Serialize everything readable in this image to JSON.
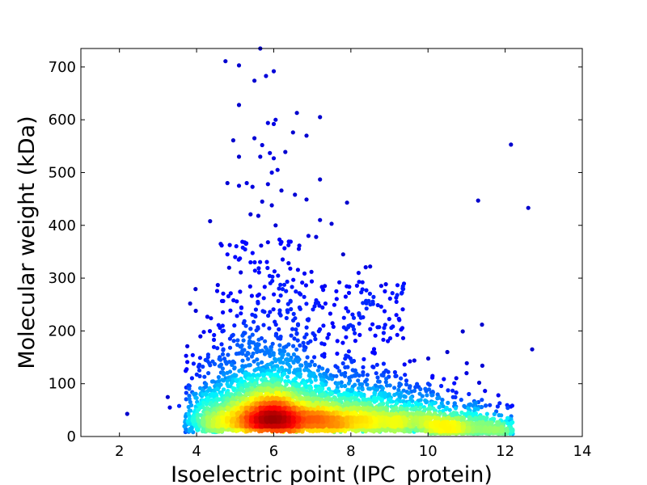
{
  "chart_data": {
    "type": "scatter",
    "title": "",
    "xlabel": "Isoelectric point (IPC_protein)",
    "ylabel": "Molecular weight (kDa)",
    "xlim": [
      1,
      14
    ],
    "ylim": [
      0,
      735
    ],
    "xticks": [
      2,
      4,
      6,
      8,
      10,
      12,
      14
    ],
    "yticks": [
      0,
      100,
      200,
      300,
      400,
      500,
      600,
      700
    ],
    "x_tick_labels": [
      "2",
      "4",
      "6",
      "8",
      "10",
      "12",
      "14"
    ],
    "y_tick_labels": [
      "0",
      "100",
      "200",
      "300",
      "400",
      "500",
      "600",
      "700"
    ],
    "grid": false,
    "legend": "none",
    "colormap": "jet (point density)",
    "colors": {
      "low_density": "#00008f",
      "mid_low": "#0080ff",
      "mid": "#40ffbf",
      "mid_high": "#ffff00",
      "high": "#ff4000",
      "peak": "#800000"
    },
    "density_peak": {
      "x": 5.7,
      "y": 45
    },
    "outlier_points": [
      {
        "x": 4.75,
        "y": 711
      },
      {
        "x": 5.1,
        "y": 703
      },
      {
        "x": 5.5,
        "y": 674
      },
      {
        "x": 5.65,
        "y": 735
      },
      {
        "x": 5.8,
        "y": 683
      },
      {
        "x": 6.0,
        "y": 692
      },
      {
        "x": 5.1,
        "y": 628
      },
      {
        "x": 6.6,
        "y": 613
      },
      {
        "x": 7.2,
        "y": 605
      },
      {
        "x": 5.85,
        "y": 594
      },
      {
        "x": 6.05,
        "y": 600
      },
      {
        "x": 6.0,
        "y": 592
      },
      {
        "x": 4.95,
        "y": 561
      },
      {
        "x": 5.5,
        "y": 565
      },
      {
        "x": 6.5,
        "y": 576
      },
      {
        "x": 6.85,
        "y": 570
      },
      {
        "x": 5.7,
        "y": 552
      },
      {
        "x": 5.65,
        "y": 530
      },
      {
        "x": 5.9,
        "y": 537
      },
      {
        "x": 6.0,
        "y": 527
      },
      {
        "x": 6.3,
        "y": 539
      },
      {
        "x": 5.1,
        "y": 530
      },
      {
        "x": 5.95,
        "y": 500
      },
      {
        "x": 6.1,
        "y": 505
      },
      {
        "x": 4.8,
        "y": 480
      },
      {
        "x": 5.1,
        "y": 475
      },
      {
        "x": 5.3,
        "y": 480
      },
      {
        "x": 5.45,
        "y": 473
      },
      {
        "x": 5.85,
        "y": 478
      },
      {
        "x": 7.2,
        "y": 487
      },
      {
        "x": 6.2,
        "y": 466
      },
      {
        "x": 6.55,
        "y": 458
      },
      {
        "x": 6.85,
        "y": 449
      },
      {
        "x": 7.9,
        "y": 443
      },
      {
        "x": 5.7,
        "y": 445
      },
      {
        "x": 5.95,
        "y": 438
      },
      {
        "x": 4.35,
        "y": 408
      },
      {
        "x": 5.4,
        "y": 421
      },
      {
        "x": 5.6,
        "y": 418
      },
      {
        "x": 6.05,
        "y": 400
      },
      {
        "x": 7.2,
        "y": 410
      },
      {
        "x": 7.5,
        "y": 403
      },
      {
        "x": 6.9,
        "y": 380
      },
      {
        "x": 7.1,
        "y": 378
      },
      {
        "x": 6.15,
        "y": 373
      },
      {
        "x": 5.85,
        "y": 368
      },
      {
        "x": 4.65,
        "y": 362
      },
      {
        "x": 5.0,
        "y": 340
      },
      {
        "x": 4.8,
        "y": 345
      },
      {
        "x": 7.8,
        "y": 345
      },
      {
        "x": 5.4,
        "y": 330
      },
      {
        "x": 8.5,
        "y": 322
      },
      {
        "x": 8.2,
        "y": 310
      },
      {
        "x": 4.55,
        "y": 287
      },
      {
        "x": 9.2,
        "y": 268
      },
      {
        "x": 11.3,
        "y": 447
      },
      {
        "x": 12.15,
        "y": 553
      },
      {
        "x": 12.6,
        "y": 433
      },
      {
        "x": 12.7,
        "y": 165
      },
      {
        "x": 11.4,
        "y": 212
      },
      {
        "x": 10.9,
        "y": 199
      },
      {
        "x": 10.5,
        "y": 160
      },
      {
        "x": 11.0,
        "y": 120
      }
    ]
  }
}
